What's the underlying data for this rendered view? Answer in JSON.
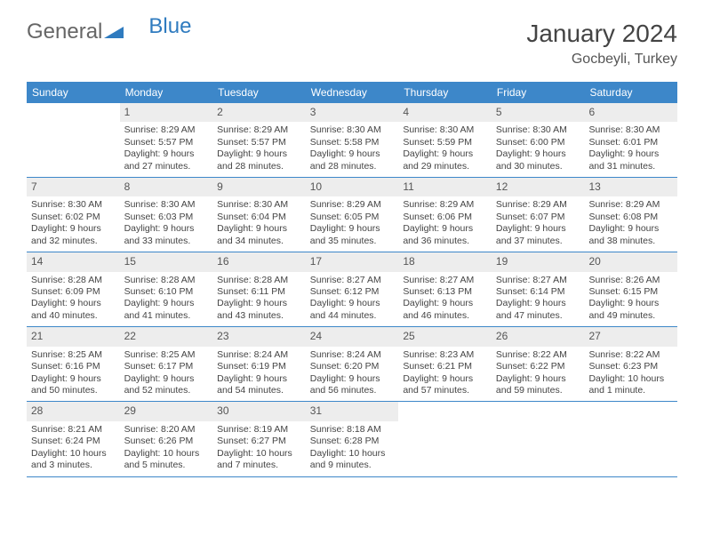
{
  "brand": {
    "part1": "General",
    "part2": "Blue"
  },
  "title": "January 2024",
  "location": "Gocbeyli, Turkey",
  "colors": {
    "header_bg": "#3d87c9",
    "header_text": "#ffffff",
    "daynum_bg": "#ededed",
    "border": "#3d87c9",
    "body_text": "#444444",
    "brand_gray": "#666666",
    "brand_blue": "#2f7bbf",
    "page_bg": "#ffffff"
  },
  "typography": {
    "title_fontsize": 28,
    "location_fontsize": 16,
    "dayhead_fontsize": 12,
    "cell_fontsize": 10.5,
    "font_family": "Arial"
  },
  "day_labels": [
    "Sunday",
    "Monday",
    "Tuesday",
    "Wednesday",
    "Thursday",
    "Friday",
    "Saturday"
  ],
  "weeks": [
    [
      {
        "n": "",
        "empty": true
      },
      {
        "n": "1",
        "sr": "Sunrise: 8:29 AM",
        "ss": "Sunset: 5:57 PM",
        "dl": "Daylight: 9 hours and 27 minutes."
      },
      {
        "n": "2",
        "sr": "Sunrise: 8:29 AM",
        "ss": "Sunset: 5:57 PM",
        "dl": "Daylight: 9 hours and 28 minutes."
      },
      {
        "n": "3",
        "sr": "Sunrise: 8:30 AM",
        "ss": "Sunset: 5:58 PM",
        "dl": "Daylight: 9 hours and 28 minutes."
      },
      {
        "n": "4",
        "sr": "Sunrise: 8:30 AM",
        "ss": "Sunset: 5:59 PM",
        "dl": "Daylight: 9 hours and 29 minutes."
      },
      {
        "n": "5",
        "sr": "Sunrise: 8:30 AM",
        "ss": "Sunset: 6:00 PM",
        "dl": "Daylight: 9 hours and 30 minutes."
      },
      {
        "n": "6",
        "sr": "Sunrise: 8:30 AM",
        "ss": "Sunset: 6:01 PM",
        "dl": "Daylight: 9 hours and 31 minutes."
      }
    ],
    [
      {
        "n": "7",
        "sr": "Sunrise: 8:30 AM",
        "ss": "Sunset: 6:02 PM",
        "dl": "Daylight: 9 hours and 32 minutes."
      },
      {
        "n": "8",
        "sr": "Sunrise: 8:30 AM",
        "ss": "Sunset: 6:03 PM",
        "dl": "Daylight: 9 hours and 33 minutes."
      },
      {
        "n": "9",
        "sr": "Sunrise: 8:30 AM",
        "ss": "Sunset: 6:04 PM",
        "dl": "Daylight: 9 hours and 34 minutes."
      },
      {
        "n": "10",
        "sr": "Sunrise: 8:29 AM",
        "ss": "Sunset: 6:05 PM",
        "dl": "Daylight: 9 hours and 35 minutes."
      },
      {
        "n": "11",
        "sr": "Sunrise: 8:29 AM",
        "ss": "Sunset: 6:06 PM",
        "dl": "Daylight: 9 hours and 36 minutes."
      },
      {
        "n": "12",
        "sr": "Sunrise: 8:29 AM",
        "ss": "Sunset: 6:07 PM",
        "dl": "Daylight: 9 hours and 37 minutes."
      },
      {
        "n": "13",
        "sr": "Sunrise: 8:29 AM",
        "ss": "Sunset: 6:08 PM",
        "dl": "Daylight: 9 hours and 38 minutes."
      }
    ],
    [
      {
        "n": "14",
        "sr": "Sunrise: 8:28 AM",
        "ss": "Sunset: 6:09 PM",
        "dl": "Daylight: 9 hours and 40 minutes."
      },
      {
        "n": "15",
        "sr": "Sunrise: 8:28 AM",
        "ss": "Sunset: 6:10 PM",
        "dl": "Daylight: 9 hours and 41 minutes."
      },
      {
        "n": "16",
        "sr": "Sunrise: 8:28 AM",
        "ss": "Sunset: 6:11 PM",
        "dl": "Daylight: 9 hours and 43 minutes."
      },
      {
        "n": "17",
        "sr": "Sunrise: 8:27 AM",
        "ss": "Sunset: 6:12 PM",
        "dl": "Daylight: 9 hours and 44 minutes."
      },
      {
        "n": "18",
        "sr": "Sunrise: 8:27 AM",
        "ss": "Sunset: 6:13 PM",
        "dl": "Daylight: 9 hours and 46 minutes."
      },
      {
        "n": "19",
        "sr": "Sunrise: 8:27 AM",
        "ss": "Sunset: 6:14 PM",
        "dl": "Daylight: 9 hours and 47 minutes."
      },
      {
        "n": "20",
        "sr": "Sunrise: 8:26 AM",
        "ss": "Sunset: 6:15 PM",
        "dl": "Daylight: 9 hours and 49 minutes."
      }
    ],
    [
      {
        "n": "21",
        "sr": "Sunrise: 8:25 AM",
        "ss": "Sunset: 6:16 PM",
        "dl": "Daylight: 9 hours and 50 minutes."
      },
      {
        "n": "22",
        "sr": "Sunrise: 8:25 AM",
        "ss": "Sunset: 6:17 PM",
        "dl": "Daylight: 9 hours and 52 minutes."
      },
      {
        "n": "23",
        "sr": "Sunrise: 8:24 AM",
        "ss": "Sunset: 6:19 PM",
        "dl": "Daylight: 9 hours and 54 minutes."
      },
      {
        "n": "24",
        "sr": "Sunrise: 8:24 AM",
        "ss": "Sunset: 6:20 PM",
        "dl": "Daylight: 9 hours and 56 minutes."
      },
      {
        "n": "25",
        "sr": "Sunrise: 8:23 AM",
        "ss": "Sunset: 6:21 PM",
        "dl": "Daylight: 9 hours and 57 minutes."
      },
      {
        "n": "26",
        "sr": "Sunrise: 8:22 AM",
        "ss": "Sunset: 6:22 PM",
        "dl": "Daylight: 9 hours and 59 minutes."
      },
      {
        "n": "27",
        "sr": "Sunrise: 8:22 AM",
        "ss": "Sunset: 6:23 PM",
        "dl": "Daylight: 10 hours and 1 minute."
      }
    ],
    [
      {
        "n": "28",
        "sr": "Sunrise: 8:21 AM",
        "ss": "Sunset: 6:24 PM",
        "dl": "Daylight: 10 hours and 3 minutes."
      },
      {
        "n": "29",
        "sr": "Sunrise: 8:20 AM",
        "ss": "Sunset: 6:26 PM",
        "dl": "Daylight: 10 hours and 5 minutes."
      },
      {
        "n": "30",
        "sr": "Sunrise: 8:19 AM",
        "ss": "Sunset: 6:27 PM",
        "dl": "Daylight: 10 hours and 7 minutes."
      },
      {
        "n": "31",
        "sr": "Sunrise: 8:18 AM",
        "ss": "Sunset: 6:28 PM",
        "dl": "Daylight: 10 hours and 9 minutes."
      },
      {
        "n": "",
        "empty": true
      },
      {
        "n": "",
        "empty": true
      },
      {
        "n": "",
        "empty": true
      }
    ]
  ]
}
